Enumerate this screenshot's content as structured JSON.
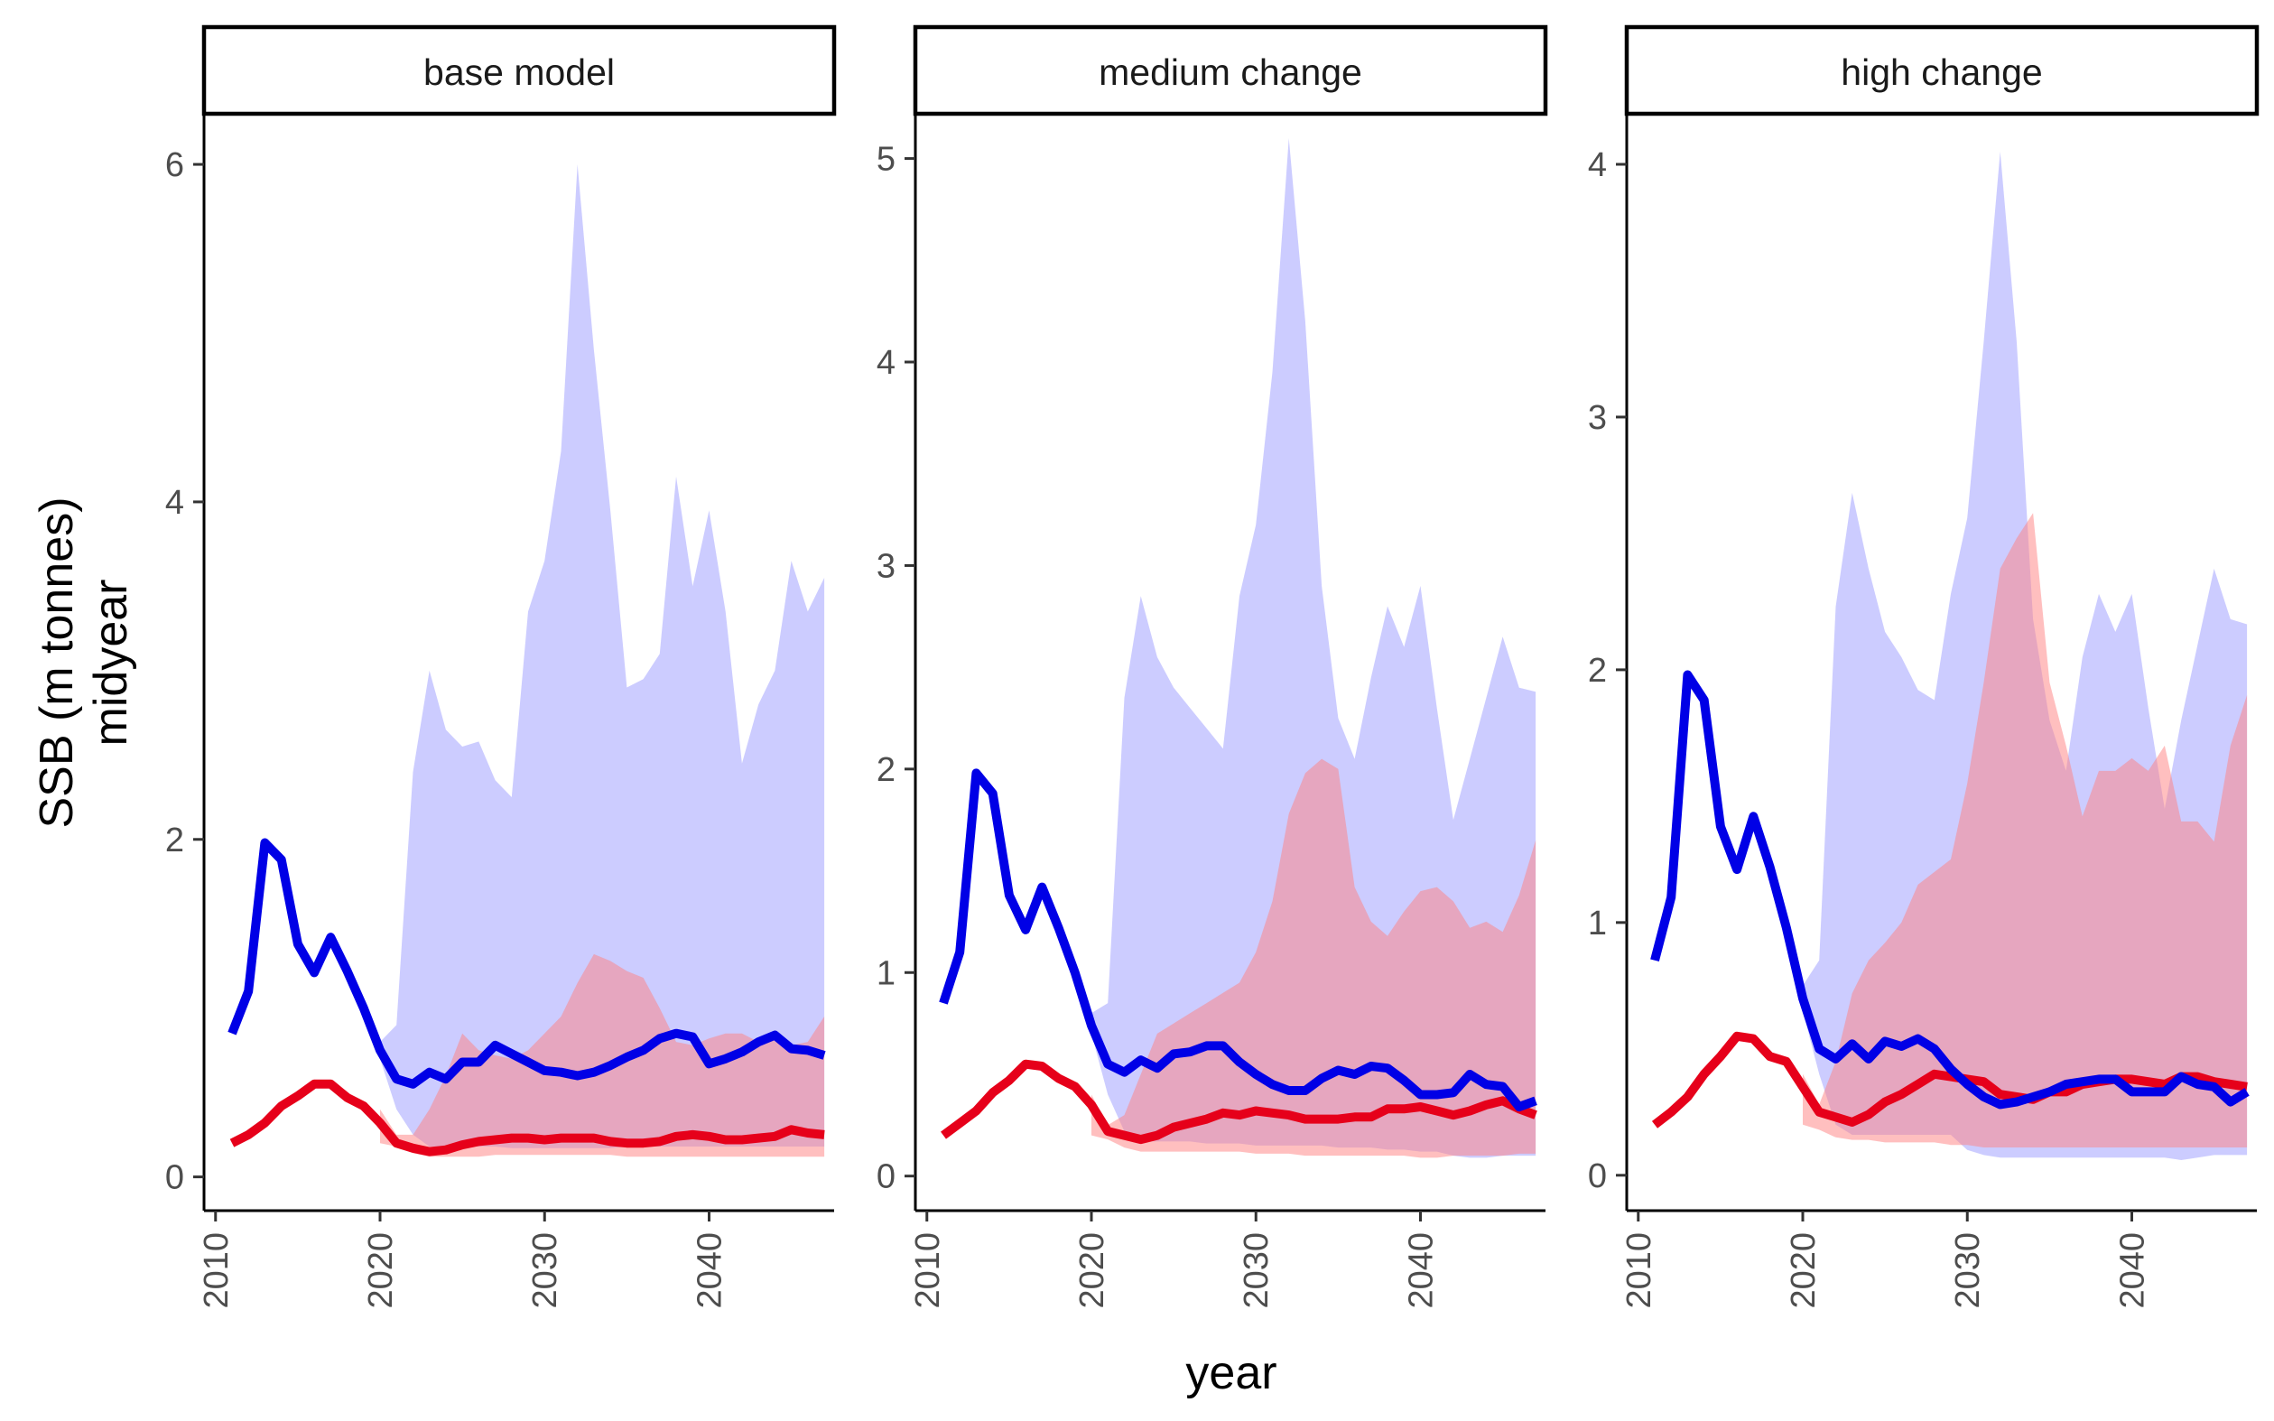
{
  "chart_data": {
    "type": "area",
    "xlabel": "year",
    "ylabel_lines": [
      "SSB (m tonnes)",
      "midyear"
    ],
    "x_ticks": [
      2010,
      2020,
      2030,
      2040
    ],
    "colors": {
      "blue_line": "#0000e6",
      "red_line": "#e6001a",
      "blue_band": "#9999ff",
      "red_band": "#ff8080"
    },
    "x": [
      2011,
      2012,
      2013,
      2014,
      2015,
      2016,
      2017,
      2018,
      2019,
      2020,
      2021,
      2022,
      2023,
      2024,
      2025,
      2026,
      2027,
      2028,
      2029,
      2030,
      2031,
      2032,
      2033,
      2034,
      2035,
      2036,
      2037,
      2038,
      2039,
      2040,
      2041,
      2042,
      2043,
      2044,
      2045,
      2046,
      2047
    ],
    "panels": [
      {
        "title": "base model",
        "xlim": [
          2009.3,
          2047.6
        ],
        "ylim": [
          -0.2,
          6.3
        ],
        "y_ticks": [
          0,
          2,
          4,
          6
        ],
        "blue_line": [
          0.85,
          1.1,
          1.98,
          1.88,
          1.38,
          1.21,
          1.42,
          1.22,
          1.0,
          0.75,
          0.58,
          0.55,
          0.62,
          0.58,
          0.68,
          0.68,
          0.78,
          0.73,
          0.68,
          0.63,
          0.62,
          0.6,
          0.62,
          0.66,
          0.71,
          0.75,
          0.82,
          0.85,
          0.83,
          0.67,
          0.7,
          0.74,
          0.8,
          0.84,
          0.76,
          0.75,
          0.72
        ],
        "blue_upper": [
          null,
          null,
          null,
          null,
          null,
          null,
          null,
          null,
          null,
          0.8,
          0.9,
          2.4,
          3.0,
          2.65,
          2.55,
          2.58,
          2.35,
          2.25,
          3.35,
          3.65,
          4.3,
          6.0,
          4.9,
          3.95,
          2.9,
          2.95,
          3.1,
          4.15,
          3.5,
          3.95,
          3.35,
          2.45,
          2.8,
          3.0,
          3.65,
          3.35,
          3.55
        ],
        "blue_lower": [
          null,
          null,
          null,
          null,
          null,
          null,
          null,
          null,
          null,
          0.7,
          0.4,
          0.25,
          0.18,
          0.18,
          0.18,
          0.18,
          0.18,
          0.17,
          0.17,
          0.17,
          0.17,
          0.17,
          0.17,
          0.17,
          0.18,
          0.18,
          0.18,
          0.18,
          0.18,
          0.18,
          0.18,
          0.18,
          0.18,
          0.18,
          0.18,
          0.18,
          0.18
        ],
        "red_line": [
          0.2,
          0.25,
          0.32,
          0.42,
          0.48,
          0.55,
          0.55,
          0.47,
          0.42,
          0.32,
          0.2,
          0.17,
          0.15,
          0.16,
          0.19,
          0.21,
          0.22,
          0.23,
          0.23,
          0.22,
          0.23,
          0.23,
          0.23,
          0.21,
          0.2,
          0.2,
          0.21,
          0.24,
          0.25,
          0.24,
          0.22,
          0.22,
          0.23,
          0.24,
          0.28,
          0.26,
          0.25
        ],
        "red_upper": [
          null,
          null,
          null,
          null,
          null,
          null,
          null,
          null,
          null,
          0.4,
          0.25,
          0.25,
          0.4,
          0.6,
          0.85,
          0.75,
          0.72,
          0.7,
          0.75,
          0.85,
          0.95,
          1.15,
          1.32,
          1.28,
          1.22,
          1.18,
          1.0,
          0.8,
          0.78,
          0.82,
          0.85,
          0.85,
          0.8,
          0.85,
          0.78,
          0.8,
          0.95
        ],
        "red_lower": [
          null,
          null,
          null,
          null,
          null,
          null,
          null,
          null,
          null,
          0.2,
          0.18,
          0.14,
          0.12,
          0.12,
          0.12,
          0.12,
          0.13,
          0.13,
          0.13,
          0.13,
          0.13,
          0.13,
          0.13,
          0.13,
          0.12,
          0.12,
          0.12,
          0.12,
          0.12,
          0.12,
          0.12,
          0.12,
          0.12,
          0.12,
          0.12,
          0.12,
          0.12
        ]
      },
      {
        "title": "medium change",
        "xlim": [
          2009.3,
          2047.6
        ],
        "ylim": [
          -0.17,
          5.22
        ],
        "y_ticks": [
          0,
          1,
          2,
          3,
          4,
          5
        ],
        "blue_line": [
          0.85,
          1.1,
          1.98,
          1.88,
          1.38,
          1.21,
          1.42,
          1.22,
          1.0,
          0.74,
          0.55,
          0.51,
          0.57,
          0.53,
          0.6,
          0.61,
          0.64,
          0.64,
          0.56,
          0.5,
          0.45,
          0.42,
          0.42,
          0.48,
          0.52,
          0.5,
          0.54,
          0.53,
          0.47,
          0.4,
          0.4,
          0.41,
          0.5,
          0.45,
          0.44,
          0.34,
          0.37
        ],
        "blue_upper": [
          null,
          null,
          null,
          null,
          null,
          null,
          null,
          null,
          null,
          0.8,
          0.85,
          2.35,
          2.85,
          2.55,
          2.4,
          2.3,
          2.2,
          2.1,
          2.85,
          3.2,
          3.95,
          5.1,
          4.2,
          2.9,
          2.25,
          2.05,
          2.45,
          2.8,
          2.6,
          2.9,
          2.3,
          1.75,
          2.05,
          2.35,
          2.65,
          2.4,
          2.38
        ],
        "blue_lower": [
          null,
          null,
          null,
          null,
          null,
          null,
          null,
          null,
          null,
          0.7,
          0.4,
          0.22,
          0.17,
          0.17,
          0.17,
          0.17,
          0.16,
          0.16,
          0.16,
          0.15,
          0.15,
          0.15,
          0.15,
          0.15,
          0.14,
          0.14,
          0.14,
          0.13,
          0.13,
          0.12,
          0.12,
          0.1,
          0.09,
          0.09,
          0.1,
          0.1,
          0.1
        ],
        "red_line": [
          0.2,
          0.26,
          0.32,
          0.41,
          0.47,
          0.55,
          0.54,
          0.48,
          0.44,
          0.35,
          0.22,
          0.2,
          0.18,
          0.2,
          0.24,
          0.26,
          0.28,
          0.31,
          0.3,
          0.32,
          0.31,
          0.3,
          0.28,
          0.28,
          0.28,
          0.29,
          0.29,
          0.33,
          0.33,
          0.34,
          0.32,
          0.3,
          0.32,
          0.35,
          0.37,
          0.33,
          0.3
        ],
        "red_upper": [
          null,
          null,
          null,
          null,
          null,
          null,
          null,
          null,
          null,
          0.4,
          0.25,
          0.3,
          0.5,
          0.7,
          0.75,
          0.8,
          0.85,
          0.9,
          0.95,
          1.1,
          1.35,
          1.78,
          1.98,
          2.05,
          2.0,
          1.42,
          1.25,
          1.18,
          1.3,
          1.4,
          1.42,
          1.35,
          1.22,
          1.25,
          1.2,
          1.38,
          1.65
        ],
        "red_lower": [
          null,
          null,
          null,
          null,
          null,
          null,
          null,
          null,
          null,
          0.2,
          0.18,
          0.14,
          0.12,
          0.12,
          0.12,
          0.12,
          0.12,
          0.12,
          0.12,
          0.11,
          0.11,
          0.11,
          0.1,
          0.1,
          0.1,
          0.1,
          0.1,
          0.1,
          0.1,
          0.09,
          0.09,
          0.1,
          0.1,
          0.1,
          0.1,
          0.11,
          0.11
        ]
      },
      {
        "title": "high change",
        "xlim": [
          2009.3,
          2047.6
        ],
        "ylim": [
          -0.14,
          4.2
        ],
        "y_ticks": [
          0,
          1,
          2,
          3,
          4
        ],
        "blue_line": [
          0.85,
          1.1,
          1.98,
          1.88,
          1.38,
          1.21,
          1.42,
          1.22,
          0.98,
          0.7,
          0.5,
          0.46,
          0.52,
          0.46,
          0.53,
          0.51,
          0.54,
          0.5,
          0.42,
          0.36,
          0.31,
          0.28,
          0.29,
          0.31,
          0.33,
          0.36,
          0.37,
          0.38,
          0.38,
          0.33,
          0.33,
          0.33,
          0.39,
          0.36,
          0.35,
          0.29,
          0.33
        ],
        "blue_upper": [
          null,
          null,
          null,
          null,
          null,
          null,
          null,
          null,
          null,
          0.75,
          0.85,
          2.25,
          2.7,
          2.4,
          2.15,
          2.05,
          1.92,
          1.88,
          2.3,
          2.6,
          3.3,
          4.05,
          3.3,
          2.2,
          1.8,
          1.6,
          2.05,
          2.3,
          2.15,
          2.3,
          1.85,
          1.45,
          1.8,
          2.1,
          2.4,
          2.2,
          2.18
        ],
        "blue_lower": [
          null,
          null,
          null,
          null,
          null,
          null,
          null,
          null,
          null,
          0.65,
          0.4,
          0.2,
          0.16,
          0.16,
          0.16,
          0.16,
          0.16,
          0.16,
          0.16,
          0.1,
          0.08,
          0.07,
          0.07,
          0.07,
          0.07,
          0.07,
          0.07,
          0.07,
          0.07,
          0.07,
          0.07,
          0.07,
          0.06,
          0.07,
          0.08,
          0.08,
          0.08
        ],
        "red_line": [
          0.2,
          0.25,
          0.31,
          0.4,
          0.47,
          0.55,
          0.54,
          0.47,
          0.45,
          0.35,
          0.25,
          0.23,
          0.21,
          0.24,
          0.29,
          0.32,
          0.36,
          0.4,
          0.39,
          0.38,
          0.37,
          0.32,
          0.31,
          0.3,
          0.33,
          0.33,
          0.36,
          0.37,
          0.38,
          0.38,
          0.37,
          0.36,
          0.39,
          0.39,
          0.37,
          0.36,
          0.35
        ],
        "red_upper": [
          null,
          null,
          null,
          null,
          null,
          null,
          null,
          null,
          null,
          0.4,
          0.28,
          0.45,
          0.72,
          0.85,
          0.92,
          1.0,
          1.15,
          1.2,
          1.25,
          1.55,
          1.95,
          2.4,
          2.52,
          2.62,
          1.95,
          1.7,
          1.42,
          1.6,
          1.6,
          1.65,
          1.6,
          1.7,
          1.4,
          1.4,
          1.32,
          1.7,
          1.9
        ],
        "red_lower": [
          null,
          null,
          null,
          null,
          null,
          null,
          null,
          null,
          null,
          0.2,
          0.18,
          0.15,
          0.14,
          0.14,
          0.13,
          0.13,
          0.13,
          0.13,
          0.12,
          0.12,
          0.11,
          0.11,
          0.11,
          0.11,
          0.11,
          0.11,
          0.11,
          0.11,
          0.11,
          0.11,
          0.11,
          0.11,
          0.11,
          0.11,
          0.11,
          0.11,
          0.11
        ]
      }
    ]
  }
}
